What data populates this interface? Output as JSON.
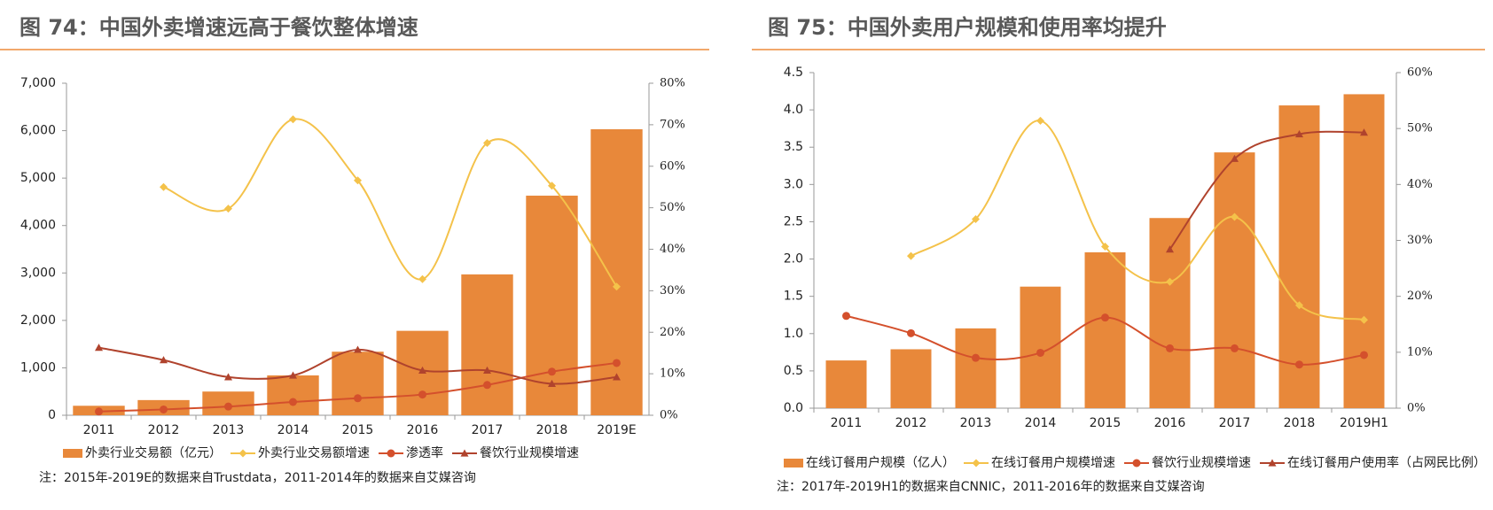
{
  "chart_data": [
    {
      "type": "bar",
      "title": "图 74：中国外卖增速远高于餐饮整体增速",
      "note": "注：2015年-2019E的数据来自Trustdata，2011-2014年的数据来自艾媒咨询",
      "categories": [
        "2011",
        "2012",
        "2013",
        "2014",
        "2015",
        "2016",
        "2017",
        "2018",
        "2019E"
      ],
      "ylim": [
        0,
        7000
      ],
      "yticks": [
        0,
        {
          "value": 1000,
          "label": "1,000"
        },
        {
          "value": 2000,
          "label": "2,000"
        },
        {
          "value": 3000,
          "label": "3,000"
        },
        {
          "value": 4000,
          "label": "4,000"
        },
        {
          "value": 5000,
          "label": "5,000"
        },
        {
          "value": 6000,
          "label": "6,000"
        },
        {
          "value": 7000,
          "label": "7,000"
        }
      ],
      "y2lim": [
        0,
        80
      ],
      "y2ticks": [
        {
          "value": 0,
          "label": "0%"
        },
        {
          "value": 10,
          "label": "10%"
        },
        {
          "value": 20,
          "label": "20%"
        },
        {
          "value": 30,
          "label": "30%"
        },
        {
          "value": 40,
          "label": "40%"
        },
        {
          "value": 50,
          "label": "50%"
        },
        {
          "value": 60,
          "label": "60%"
        },
        {
          "value": 70,
          "label": "70%"
        },
        {
          "value": 80,
          "label": "80%"
        }
      ],
      "series": [
        {
          "name": "外卖行业交易额（亿元）",
          "type": "bar",
          "color": "#e8883a",
          "values": [
            200,
            320,
            500,
            840,
            1340,
            1780,
            2970,
            4630,
            6030
          ]
        },
        {
          "name": "外卖行业交易额增速",
          "type": "line",
          "marker": "diamond",
          "axis": "y2",
          "color": "#f4c24a",
          "values": [
            null,
            55.0,
            49.8,
            71.3,
            56.6,
            32.8,
            65.6,
            55.3,
            31.0
          ]
        },
        {
          "name": "渗透率",
          "type": "line",
          "marker": "circle",
          "axis": "y2",
          "color": "#d4502c",
          "values": [
            0.9,
            1.4,
            2.1,
            3.2,
            4.1,
            5.0,
            7.3,
            10.5,
            12.6
          ]
        },
        {
          "name": "餐饮行业规模增速",
          "type": "line",
          "marker": "triangle",
          "axis": "y2",
          "color": "#b0432d",
          "values": [
            16.3,
            13.3,
            9.2,
            9.6,
            15.8,
            10.8,
            10.8,
            7.6,
            9.2
          ]
        }
      ]
    },
    {
      "type": "bar",
      "title": "图 75：中国外卖用户规模和使用率均提升",
      "note": "注：2017年-2019H1的数据来自CNNIC，2011-2016年的数据来自艾媒咨询",
      "categories": [
        "2011",
        "2012",
        "2013",
        "2014",
        "2015",
        "2016",
        "2017",
        "2018",
        "2019H1"
      ],
      "ylim": [
        0,
        4.5
      ],
      "yticks": [
        {
          "value": 0,
          "label": "0.0"
        },
        0.5,
        {
          "value": 1,
          "label": "1.0"
        },
        1.5,
        {
          "value": 2,
          "label": "2.0"
        },
        2.5,
        {
          "value": 3,
          "label": "3.0"
        },
        3.5,
        {
          "value": 4,
          "label": "4.0"
        },
        4.5
      ],
      "y2lim": [
        0,
        60
      ],
      "y2ticks": [
        {
          "value": 0,
          "label": "0%"
        },
        {
          "value": 10,
          "label": "10%"
        },
        {
          "value": 20,
          "label": "20%"
        },
        {
          "value": 30,
          "label": "30%"
        },
        {
          "value": 40,
          "label": "40%"
        },
        {
          "value": 50,
          "label": "50%"
        },
        {
          "value": 60,
          "label": "60%"
        }
      ],
      "series": [
        {
          "name": "在线订餐用户规模（亿人）",
          "type": "bar",
          "color": "#e8883a",
          "values": [
            0.64,
            0.79,
            1.07,
            1.63,
            2.09,
            2.55,
            3.43,
            4.06,
            4.21
          ]
        },
        {
          "name": "在线订餐用户规模增速",
          "type": "line",
          "marker": "diamond",
          "axis": "y2",
          "color": "#f4c24a",
          "values": [
            null,
            27.2,
            33.8,
            51.4,
            28.9,
            22.6,
            34.2,
            18.4,
            15.8
          ]
        },
        {
          "name": "餐饮行业规模增速",
          "type": "line",
          "marker": "circle",
          "axis": "y2",
          "color": "#d4502c",
          "values": [
            16.5,
            13.4,
            9.0,
            9.9,
            16.2,
            10.7,
            10.7,
            7.8,
            9.5
          ]
        },
        {
          "name": "在线订餐用户使用率（占网民比例）",
          "type": "line",
          "marker": "triangle",
          "axis": "y2",
          "color": "#b0432d",
          "values": [
            null,
            null,
            null,
            null,
            null,
            28.4,
            44.6,
            49.0,
            49.3
          ]
        }
      ]
    }
  ]
}
